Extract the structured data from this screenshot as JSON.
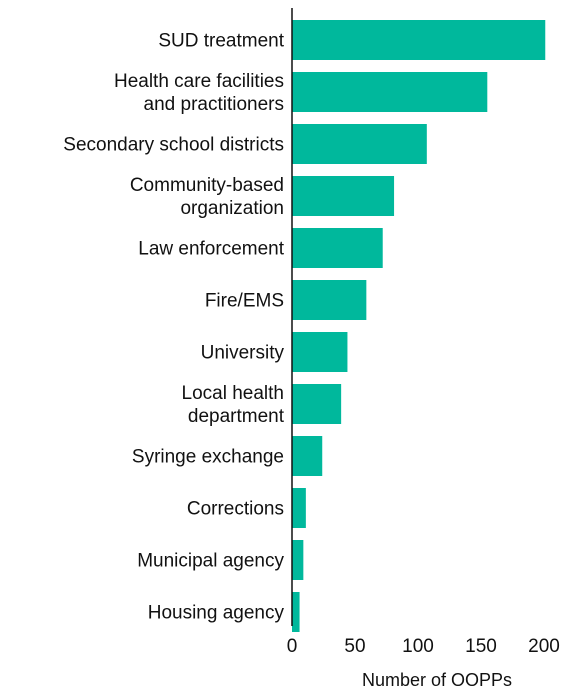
{
  "chart_data": {
    "type": "bar",
    "orientation": "horizontal",
    "categories": [
      "SUD treatment",
      "Health care facilities\nand practitioners",
      "Secondary school districts",
      "Community-based\norganization",
      "Law enforcement",
      "Fire/EMS",
      "University",
      "Local health\ndepartment",
      "Syringe exchange",
      "Corrections",
      "Municipal agency",
      "Housing agency"
    ],
    "values": [
      201,
      155,
      107,
      81,
      72,
      59,
      44,
      39,
      24,
      11,
      9,
      6
    ],
    "xlabel": "Number of OOPPs",
    "ylabel": "",
    "title": "",
    "xlim": [
      0,
      200
    ],
    "xticks": [
      0,
      50,
      100,
      150,
      200
    ],
    "bar_color": "#00b89c",
    "grid": false,
    "legend": "none"
  }
}
